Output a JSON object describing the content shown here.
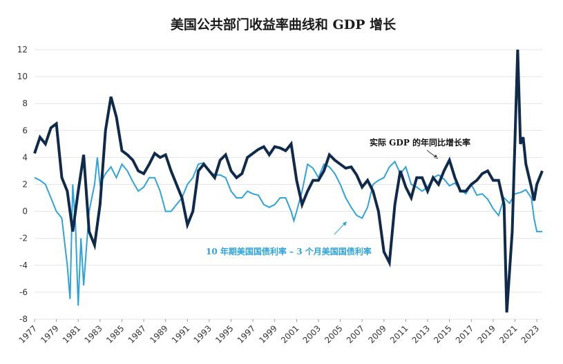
{
  "chart_data": {
    "type": "line",
    "title": "美国公共部门收益率曲线和 GDP 增长",
    "annotations": [
      "实际 GDP 的年同比增长率",
      "10 年期美国国债利率 – 3 个月美国国债利率"
    ],
    "xlim": [
      1977,
      2023.5
    ],
    "xticks": [
      1977,
      1979,
      1981,
      1983,
      1985,
      1987,
      1989,
      1991,
      1993,
      1995,
      1997,
      1999,
      2001,
      2003,
      2005,
      2007,
      2009,
      2011,
      2013,
      2015,
      2017,
      2019,
      2021,
      2023
    ],
    "ylim": [
      -8,
      12
    ],
    "yticks": [
      -8,
      -6,
      -4,
      -2,
      0,
      2,
      4,
      6,
      8,
      10,
      12
    ],
    "grid": true,
    "series": [
      {
        "color": "#2ea3d9",
        "x": [
          1977,
          1977.5,
          1978,
          1978.5,
          1979,
          1979.5,
          1980,
          1980.25,
          1980.5,
          1980.75,
          1981,
          1981.25,
          1981.5,
          1982,
          1982.5,
          1982.75,
          1983,
          1983.5,
          1984,
          1984.5,
          1985,
          1985.5,
          1986,
          1986.5,
          1987,
          1987.5,
          1988,
          1988.5,
          1989,
          1989.5,
          1990,
          1990.5,
          1991,
          1991.5,
          1992,
          1992.5,
          1993,
          1993.5,
          1994,
          1994.5,
          1995,
          1995.5,
          1996,
          1996.5,
          1997,
          1997.5,
          1998,
          1998.5,
          1999,
          1999.5,
          2000,
          2000.5,
          2000.75,
          2001,
          2001.5,
          2002,
          2002.5,
          2003,
          2003.5,
          2004,
          2004.5,
          2005,
          2005.5,
          2006,
          2006.5,
          2007,
          2007.5,
          2008,
          2008.5,
          2009,
          2009.5,
          2010,
          2010.5,
          2011,
          2011.5,
          2012,
          2012.5,
          2013,
          2013.5,
          2014,
          2014.5,
          2015,
          2015.5,
          2016,
          2016.5,
          2017,
          2017.5,
          2018,
          2018.5,
          2019,
          2019.5,
          2020,
          2020.5,
          2021,
          2021.5,
          2022,
          2022.5,
          2022.75,
          2023,
          2023.5
        ],
        "values": [
          2.5,
          2.3,
          2.0,
          1.0,
          0.0,
          -0.5,
          -4.0,
          -6.5,
          2.0,
          -1.0,
          -7.0,
          -2.0,
          -5.5,
          0.0,
          2.0,
          4.0,
          2.0,
          2.8,
          3.3,
          2.5,
          3.5,
          3.0,
          2.2,
          1.5,
          1.8,
          2.5,
          2.5,
          1.5,
          0.0,
          0.0,
          0.5,
          1.0,
          2.0,
          2.5,
          3.5,
          3.6,
          3.0,
          2.7,
          2.7,
          2.5,
          1.5,
          1.0,
          1.0,
          1.5,
          1.3,
          1.2,
          0.5,
          0.3,
          0.5,
          1.0,
          1.0,
          0.0,
          -0.7,
          0.0,
          1.5,
          3.5,
          3.2,
          2.5,
          3.5,
          3.3,
          2.8,
          2.0,
          1.0,
          0.3,
          -0.3,
          -0.5,
          0.3,
          2.0,
          2.3,
          2.5,
          3.3,
          3.7,
          2.8,
          3.3,
          2.0,
          1.8,
          1.5,
          1.8,
          2.5,
          2.7,
          2.4,
          1.9,
          2.1,
          1.6,
          1.3,
          2.0,
          1.2,
          1.3,
          0.9,
          0.2,
          -0.3,
          1.0,
          0.6,
          1.3,
          1.4,
          1.6,
          1.0,
          -0.5,
          -1.5,
          -1.5
        ]
      },
      {
        "color": "#0f2a4a",
        "x": [
          1977,
          1977.5,
          1978,
          1978.5,
          1979,
          1979.5,
          1980,
          1980.5,
          1981,
          1981.5,
          1982,
          1982.5,
          1983,
          1983.5,
          1984,
          1984.5,
          1985,
          1985.5,
          1986,
          1986.5,
          1987,
          1987.5,
          1988,
          1988.5,
          1989,
          1989.5,
          1990,
          1990.5,
          1991,
          1991.5,
          1992,
          1992.5,
          1993,
          1993.5,
          1994,
          1994.5,
          1995,
          1995.5,
          1996,
          1996.5,
          1997,
          1997.5,
          1998,
          1998.5,
          1999,
          1999.5,
          2000,
          2000.5,
          2001,
          2001.5,
          2002,
          2002.5,
          2003,
          2003.5,
          2004,
          2004.5,
          2005,
          2005.5,
          2006,
          2006.5,
          2007,
          2007.5,
          2008,
          2008.5,
          2009,
          2009.5,
          2010,
          2010.5,
          2011,
          2011.5,
          2012,
          2012.5,
          2013,
          2013.5,
          2014,
          2014.5,
          2015,
          2015.5,
          2016,
          2016.5,
          2017,
          2017.5,
          2018,
          2018.5,
          2019,
          2019.5,
          2020,
          2020.25,
          2020.75,
          2021.25,
          2021.5,
          2021.75,
          2022,
          2022.5,
          2022.75,
          2023,
          2023.5
        ],
        "values": [
          4.3,
          5.5,
          5.0,
          6.2,
          6.5,
          2.5,
          1.5,
          -1.5,
          1.5,
          4.2,
          -1.5,
          -2.5,
          0.5,
          6.0,
          8.5,
          7.0,
          4.5,
          4.2,
          3.8,
          3.0,
          2.8,
          3.5,
          4.3,
          4.0,
          4.2,
          3.0,
          2.0,
          1.0,
          -1.0,
          0.0,
          3.0,
          3.5,
          3.0,
          2.5,
          3.8,
          4.2,
          3.0,
          2.5,
          2.8,
          4.0,
          4.3,
          4.6,
          4.8,
          4.2,
          4.8,
          4.7,
          4.5,
          5.0,
          2.3,
          0.5,
          1.5,
          2.3,
          2.3,
          3.0,
          4.2,
          3.8,
          3.5,
          3.2,
          3.3,
          2.7,
          1.8,
          2.3,
          1.5,
          0.0,
          -3.0,
          -3.8,
          0.5,
          3.0,
          1.8,
          1.0,
          2.5,
          2.5,
          1.5,
          2.5,
          2.0,
          3.0,
          3.8,
          2.5,
          1.5,
          1.5,
          2.0,
          2.3,
          2.8,
          3.0,
          2.3,
          2.3,
          0.5,
          -7.5,
          -1.5,
          12.0,
          5.0,
          5.5,
          3.5,
          1.8,
          0.8,
          2.0,
          3.0
        ]
      }
    ]
  }
}
